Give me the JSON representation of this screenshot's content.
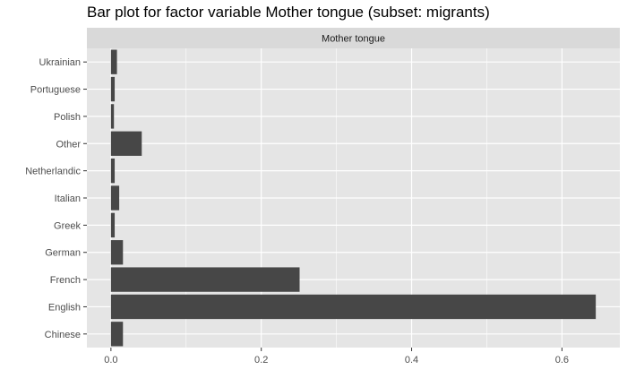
{
  "chart_data": {
    "type": "bar",
    "orientation": "horizontal",
    "title": "Bar plot for factor variable Mother tongue (subset: migrants)",
    "facet_label": "Mother tongue",
    "xlabel": "",
    "ylabel": "",
    "categories": [
      "Chinese",
      "English",
      "French",
      "German",
      "Greek",
      "Italian",
      "Netherlandic",
      "Other",
      "Polish",
      "Portuguese",
      "Ukrainian"
    ],
    "values": [
      0.016,
      0.645,
      0.251,
      0.016,
      0.005,
      0.011,
      0.005,
      0.041,
      0.004,
      0.005,
      0.008
    ],
    "xlim": [
      -0.032,
      0.677
    ],
    "xticks": [
      0.0,
      0.2,
      0.4,
      0.6
    ],
    "xtick_labels": [
      "0.0",
      "0.2",
      "0.4",
      "0.6"
    ],
    "grid": true,
    "colors": {
      "bar": "#474747",
      "panel": "#e5e5e5",
      "strip": "#d9d9d9",
      "grid": "#ffffff"
    }
  }
}
